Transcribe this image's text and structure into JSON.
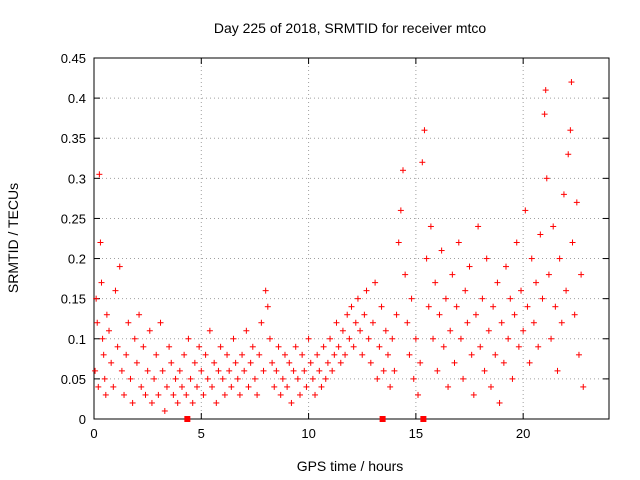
{
  "chart_data": {
    "type": "scatter",
    "title": "Day 225 of 2018, SRMTID for receiver mtco",
    "xlabel": "GPS time / hours",
    "ylabel": "SRMTID / TECUs",
    "xlim": [
      0,
      24
    ],
    "ylim": [
      0,
      0.45
    ],
    "xticks": [
      0,
      5,
      10,
      15,
      20
    ],
    "xtick_labels": [
      "0",
      "5",
      "10",
      "15",
      "20"
    ],
    "yticks": [
      0,
      0.05,
      0.1,
      0.15,
      0.2,
      0.25,
      0.3,
      0.35,
      0.4,
      0.45
    ],
    "ytick_labels": [
      "0",
      "0.05",
      "0.1",
      "0.15",
      "0.2",
      "0.25",
      "0.3",
      "0.35",
      "0.4",
      "0.45"
    ],
    "grid": true,
    "marker": "plus",
    "color": "#ff0000",
    "series": [
      {
        "name": "SRMTID",
        "points": [
          [
            0.05,
            0.06
          ],
          [
            0.1,
            0.15
          ],
          [
            0.15,
            0.12
          ],
          [
            0.2,
            0.04
          ],
          [
            0.25,
            0.305
          ],
          [
            0.3,
            0.22
          ],
          [
            0.35,
            0.17
          ],
          [
            0.4,
            0.1
          ],
          [
            0.45,
            0.08
          ],
          [
            0.5,
            0.05
          ],
          [
            0.55,
            0.03
          ],
          [
            0.6,
            0.13
          ],
          [
            0.7,
            0.11
          ],
          [
            0.8,
            0.07
          ],
          [
            0.9,
            0.04
          ],
          [
            1.0,
            0.16
          ],
          [
            1.1,
            0.09
          ],
          [
            1.2,
            0.19
          ],
          [
            1.3,
            0.06
          ],
          [
            1.4,
            0.03
          ],
          [
            1.5,
            0.08
          ],
          [
            1.6,
            0.12
          ],
          [
            1.7,
            0.05
          ],
          [
            1.8,
            0.02
          ],
          [
            1.9,
            0.1
          ],
          [
            2.0,
            0.07
          ],
          [
            2.1,
            0.13
          ],
          [
            2.2,
            0.04
          ],
          [
            2.3,
            0.09
          ],
          [
            2.4,
            0.03
          ],
          [
            2.5,
            0.06
          ],
          [
            2.6,
            0.11
          ],
          [
            2.7,
            0.02
          ],
          [
            2.8,
            0.05
          ],
          [
            2.9,
            0.08
          ],
          [
            3.0,
            0.03
          ],
          [
            3.1,
            0.12
          ],
          [
            3.2,
            0.06
          ],
          [
            3.3,
            0.01
          ],
          [
            3.4,
            0.04
          ],
          [
            3.5,
            0.09
          ],
          [
            3.6,
            0.07
          ],
          [
            3.7,
            0.03
          ],
          [
            3.8,
            0.05
          ],
          [
            3.9,
            0.02
          ],
          [
            4.0,
            0.06
          ],
          [
            4.1,
            0.04
          ],
          [
            4.2,
            0.08
          ],
          [
            4.3,
            0.03
          ],
          [
            4.4,
            0.1
          ],
          [
            4.5,
            0.05
          ],
          [
            4.6,
            0.02
          ],
          [
            4.7,
            0.07
          ],
          [
            4.8,
            0.04
          ],
          [
            4.9,
            0.09
          ],
          [
            5.0,
            0.06
          ],
          [
            5.1,
            0.03
          ],
          [
            5.2,
            0.08
          ],
          [
            5.3,
            0.05
          ],
          [
            5.4,
            0.11
          ],
          [
            5.5,
            0.04
          ],
          [
            5.6,
            0.07
          ],
          [
            5.7,
            0.02
          ],
          [
            5.8,
            0.06
          ],
          [
            5.9,
            0.09
          ],
          [
            6.0,
            0.05
          ],
          [
            6.1,
            0.03
          ],
          [
            6.2,
            0.08
          ],
          [
            6.3,
            0.06
          ],
          [
            6.4,
            0.04
          ],
          [
            6.5,
            0.1
          ],
          [
            6.6,
            0.07
          ],
          [
            6.7,
            0.05
          ],
          [
            6.8,
            0.03
          ],
          [
            6.9,
            0.08
          ],
          [
            7.0,
            0.06
          ],
          [
            7.1,
            0.11
          ],
          [
            7.2,
            0.04
          ],
          [
            7.3,
            0.07
          ],
          [
            7.4,
            0.09
          ],
          [
            7.5,
            0.05
          ],
          [
            7.6,
            0.03
          ],
          [
            7.7,
            0.08
          ],
          [
            7.8,
            0.12
          ],
          [
            7.9,
            0.06
          ],
          [
            8.0,
            0.16
          ],
          [
            8.1,
            0.14
          ],
          [
            8.2,
            0.1
          ],
          [
            8.3,
            0.07
          ],
          [
            8.4,
            0.04
          ],
          [
            8.5,
            0.06
          ],
          [
            8.6,
            0.09
          ],
          [
            8.7,
            0.03
          ],
          [
            8.8,
            0.05
          ],
          [
            8.9,
            0.08
          ],
          [
            9.0,
            0.04
          ],
          [
            9.1,
            0.07
          ],
          [
            9.2,
            0.02
          ],
          [
            9.3,
            0.06
          ],
          [
            9.4,
            0.09
          ],
          [
            9.5,
            0.05
          ],
          [
            9.6,
            0.03
          ],
          [
            9.7,
            0.08
          ],
          [
            9.8,
            0.06
          ],
          [
            9.9,
            0.04
          ],
          [
            10.0,
            0.1
          ],
          [
            10.1,
            0.07
          ],
          [
            10.2,
            0.05
          ],
          [
            10.3,
            0.03
          ],
          [
            10.4,
            0.08
          ],
          [
            10.5,
            0.06
          ],
          [
            10.6,
            0.04
          ],
          [
            10.7,
            0.09
          ],
          [
            10.8,
            0.05
          ],
          [
            10.9,
            0.07
          ],
          [
            11.0,
            0.1
          ],
          [
            11.1,
            0.06
          ],
          [
            11.2,
            0.08
          ],
          [
            11.3,
            0.12
          ],
          [
            11.4,
            0.09
          ],
          [
            11.5,
            0.07
          ],
          [
            11.6,
            0.11
          ],
          [
            11.7,
            0.08
          ],
          [
            11.8,
            0.13
          ],
          [
            11.9,
            0.1
          ],
          [
            12.0,
            0.14
          ],
          [
            12.1,
            0.09
          ],
          [
            12.2,
            0.12
          ],
          [
            12.3,
            0.15
          ],
          [
            12.4,
            0.11
          ],
          [
            12.5,
            0.08
          ],
          [
            12.6,
            0.13
          ],
          [
            12.7,
            0.16
          ],
          [
            12.8,
            0.1
          ],
          [
            12.9,
            0.07
          ],
          [
            13.0,
            0.12
          ],
          [
            13.1,
            0.17
          ],
          [
            13.2,
            0.05
          ],
          [
            13.3,
            0.09
          ],
          [
            13.4,
            0.14
          ],
          [
            13.5,
            0.06
          ],
          [
            13.6,
            0.11
          ],
          [
            13.7,
            0.08
          ],
          [
            13.8,
            0.04
          ],
          [
            13.9,
            0.1
          ],
          [
            14.0,
            0.06
          ],
          [
            14.1,
            0.13
          ],
          [
            14.2,
            0.22
          ],
          [
            14.3,
            0.26
          ],
          [
            14.4,
            0.31
          ],
          [
            14.5,
            0.18
          ],
          [
            14.6,
            0.12
          ],
          [
            14.7,
            0.08
          ],
          [
            14.8,
            0.15
          ],
          [
            14.9,
            0.05
          ],
          [
            15.0,
            0.1
          ],
          [
            15.1,
            0.03
          ],
          [
            15.2,
            0.07
          ],
          [
            15.3,
            0.32
          ],
          [
            15.4,
            0.36
          ],
          [
            15.5,
            0.2
          ],
          [
            15.6,
            0.14
          ],
          [
            15.7,
            0.24
          ],
          [
            15.8,
            0.1
          ],
          [
            15.9,
            0.17
          ],
          [
            16.0,
            0.06
          ],
          [
            16.1,
            0.13
          ],
          [
            16.2,
            0.21
          ],
          [
            16.3,
            0.09
          ],
          [
            16.4,
            0.15
          ],
          [
            16.5,
            0.04
          ],
          [
            16.6,
            0.11
          ],
          [
            16.7,
            0.18
          ],
          [
            16.8,
            0.07
          ],
          [
            16.9,
            0.14
          ],
          [
            17.0,
            0.22
          ],
          [
            17.1,
            0.1
          ],
          [
            17.2,
            0.05
          ],
          [
            17.3,
            0.16
          ],
          [
            17.4,
            0.12
          ],
          [
            17.5,
            0.19
          ],
          [
            17.6,
            0.08
          ],
          [
            17.7,
            0.03
          ],
          [
            17.8,
            0.13
          ],
          [
            17.9,
            0.24
          ],
          [
            18.0,
            0.09
          ],
          [
            18.1,
            0.15
          ],
          [
            18.2,
            0.06
          ],
          [
            18.3,
            0.2
          ],
          [
            18.4,
            0.11
          ],
          [
            18.5,
            0.04
          ],
          [
            18.6,
            0.14
          ],
          [
            18.7,
            0.08
          ],
          [
            18.8,
            0.17
          ],
          [
            18.9,
            0.02
          ],
          [
            19.0,
            0.12
          ],
          [
            19.1,
            0.07
          ],
          [
            19.2,
            0.19
          ],
          [
            19.3,
            0.1
          ],
          [
            19.4,
            0.15
          ],
          [
            19.5,
            0.05
          ],
          [
            19.6,
            0.13
          ],
          [
            19.7,
            0.22
          ],
          [
            19.8,
            0.09
          ],
          [
            19.9,
            0.16
          ],
          [
            20.0,
            0.11
          ],
          [
            20.1,
            0.26
          ],
          [
            20.2,
            0.14
          ],
          [
            20.3,
            0.07
          ],
          [
            20.4,
            0.2
          ],
          [
            20.5,
            0.12
          ],
          [
            20.6,
            0.17
          ],
          [
            20.7,
            0.09
          ],
          [
            20.8,
            0.23
          ],
          [
            20.9,
            0.15
          ],
          [
            21.0,
            0.38
          ],
          [
            21.05,
            0.41
          ],
          [
            21.1,
            0.3
          ],
          [
            21.2,
            0.18
          ],
          [
            21.3,
            0.1
          ],
          [
            21.4,
            0.24
          ],
          [
            21.5,
            0.14
          ],
          [
            21.6,
            0.06
          ],
          [
            21.7,
            0.2
          ],
          [
            21.8,
            0.12
          ],
          [
            21.9,
            0.28
          ],
          [
            22.0,
            0.16
          ],
          [
            22.1,
            0.33
          ],
          [
            22.2,
            0.36
          ],
          [
            22.25,
            0.42
          ],
          [
            22.3,
            0.22
          ],
          [
            22.4,
            0.13
          ],
          [
            22.5,
            0.27
          ],
          [
            22.6,
            0.08
          ],
          [
            22.7,
            0.18
          ],
          [
            22.8,
            0.04
          ]
        ]
      }
    ],
    "zero_markers_x": [
      4.35,
      13.45,
      15.35
    ]
  }
}
